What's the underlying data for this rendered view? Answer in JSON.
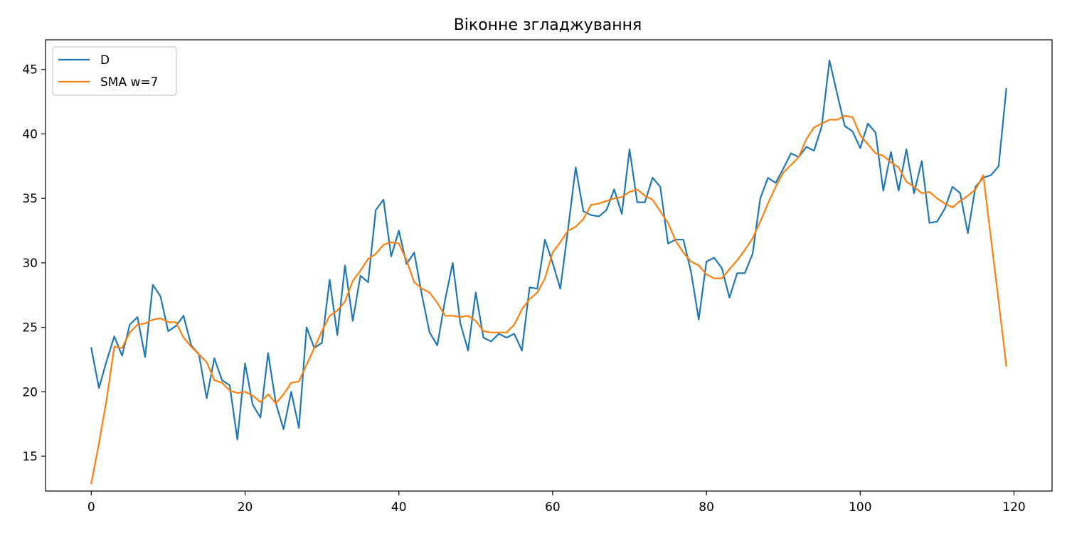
{
  "chart_data": {
    "type": "line",
    "title": "Віконне згладжування",
    "xlabel": "",
    "ylabel": "",
    "xlim": [
      -5.95,
      124.95
    ],
    "ylim": [
      12.3,
      47.3
    ],
    "xticks": [
      0,
      20,
      40,
      60,
      80,
      100,
      120
    ],
    "yticks": [
      15,
      20,
      25,
      30,
      35,
      40,
      45
    ],
    "grid": false,
    "legend_position": "top-left",
    "x": [
      0,
      1,
      2,
      3,
      4,
      5,
      6,
      7,
      8,
      9,
      10,
      11,
      12,
      13,
      14,
      15,
      16,
      17,
      18,
      19,
      20,
      21,
      22,
      23,
      24,
      25,
      26,
      27,
      28,
      29,
      30,
      31,
      32,
      33,
      34,
      35,
      36,
      37,
      38,
      39,
      40,
      41,
      42,
      43,
      44,
      45,
      46,
      47,
      48,
      49,
      50,
      51,
      52,
      53,
      54,
      55,
      56,
      57,
      58,
      59,
      60,
      61,
      62,
      63,
      64,
      65,
      66,
      67,
      68,
      69,
      70,
      71,
      72,
      73,
      74,
      75,
      76,
      77,
      78,
      79,
      80,
      81,
      82,
      83,
      84,
      85,
      86,
      87,
      88,
      89,
      90,
      91,
      92,
      93,
      94,
      95,
      96,
      97,
      98,
      99,
      100,
      101,
      102,
      103,
      104,
      105,
      106,
      107,
      108,
      109,
      110,
      111,
      112,
      113,
      114,
      115,
      116,
      117,
      118,
      119
    ],
    "series": [
      {
        "name": "D",
        "color": "#1f77b4",
        "values": [
          23.4,
          20.3,
          22.4,
          24.3,
          22.8,
          25.2,
          25.8,
          22.7,
          28.3,
          27.4,
          24.7,
          25.1,
          25.9,
          23.6,
          22.9,
          19.5,
          22.6,
          20.9,
          20.5,
          16.3,
          22.2,
          19.0,
          18.0,
          23.0,
          19.1,
          17.1,
          20.0,
          17.2,
          25.0,
          23.4,
          23.8,
          28.7,
          24.4,
          29.8,
          25.5,
          29.0,
          28.5,
          34.1,
          34.9,
          30.5,
          32.5,
          29.9,
          30.8,
          27.5,
          24.6,
          23.6,
          27.1,
          30.0,
          25.3,
          23.2,
          27.7,
          24.2,
          23.9,
          24.5,
          24.2,
          24.5,
          23.2,
          28.1,
          28.0,
          31.8,
          30.0,
          28.0,
          32.6,
          37.4,
          34.0,
          33.7,
          33.6,
          34.1,
          35.7,
          33.8,
          38.8,
          34.7,
          34.7,
          36.6,
          35.9,
          31.5,
          31.8,
          31.8,
          29.3,
          25.6,
          30.1,
          30.4,
          29.6,
          27.3,
          29.2,
          29.2,
          30.7,
          35.0,
          36.6,
          36.2,
          37.3,
          38.5,
          38.2,
          39.0,
          38.7,
          40.6,
          45.7,
          43.1,
          40.6,
          40.2,
          38.9,
          40.8,
          40.1,
          35.6,
          38.6,
          35.6,
          38.8,
          35.4,
          37.9,
          33.1,
          33.2,
          34.2,
          35.9,
          35.4,
          32.3,
          35.9,
          36.6,
          36.8,
          37.5,
          43.5
        ]
      },
      {
        "name": "SMA w=7",
        "color": "#ff7f0e",
        "values": [
          12.9,
          16.0,
          19.4,
          23.5,
          23.4,
          24.6,
          25.2,
          25.3,
          25.6,
          25.7,
          25.4,
          25.4,
          24.2,
          23.5,
          22.9,
          22.3,
          20.9,
          20.7,
          20.1,
          19.9,
          20.0,
          19.7,
          19.2,
          19.8,
          19.1,
          19.8,
          20.7,
          20.8,
          22.1,
          23.4,
          24.7,
          25.9,
          26.3,
          27.0,
          28.6,
          29.4,
          30.3,
          30.7,
          31.4,
          31.6,
          31.5,
          30.2,
          28.5,
          28.0,
          27.7,
          26.9,
          25.9,
          25.9,
          25.8,
          25.9,
          25.5,
          24.7,
          24.6,
          24.6,
          24.6,
          25.2,
          26.4,
          27.2,
          27.7,
          28.8,
          30.8,
          31.6,
          32.5,
          32.8,
          33.4,
          34.5,
          34.6,
          34.8,
          35.0,
          35.1,
          35.5,
          35.7,
          35.2,
          34.9,
          34.0,
          33.1,
          31.7,
          30.8,
          30.1,
          29.8,
          29.1,
          28.8,
          28.8,
          29.5,
          30.2,
          31.0,
          31.9,
          33.2,
          34.6,
          35.9,
          37.0,
          37.6,
          38.2,
          39.6,
          40.5,
          40.8,
          41.1,
          41.1,
          41.4,
          41.3,
          39.9,
          39.2,
          38.5,
          38.3,
          37.8,
          37.4,
          36.3,
          35.9,
          35.4,
          35.5,
          35.0,
          34.6,
          34.3,
          34.8,
          35.2,
          35.7,
          36.8,
          31.9,
          27.0,
          22.0
        ]
      }
    ]
  }
}
